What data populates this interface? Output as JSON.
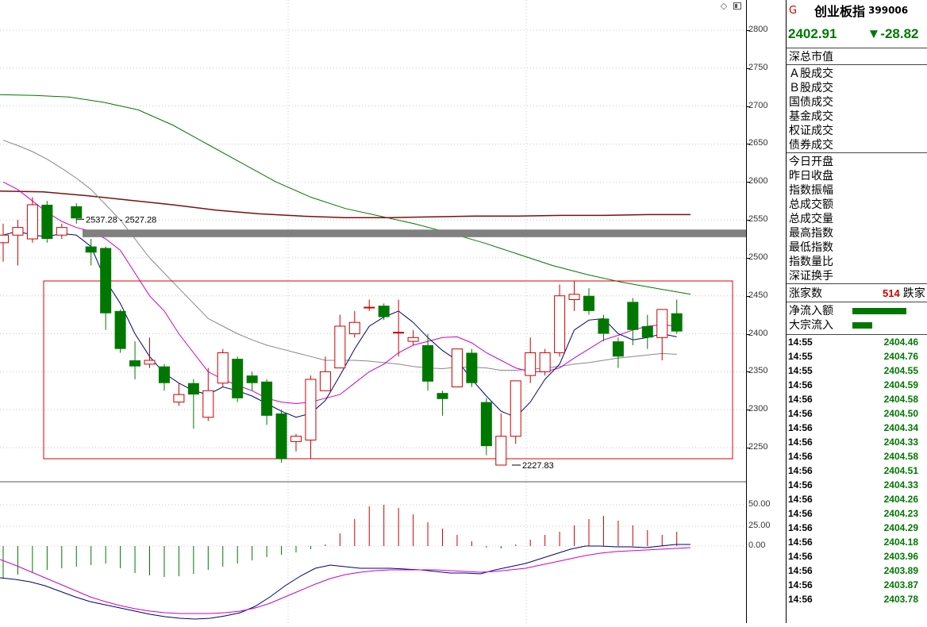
{
  "header": {
    "market_flag": "G",
    "index_name": "创业板指",
    "index_code": "399006",
    "last_price": "2402.91",
    "change": "▼-28.82"
  },
  "top_icons": [
    "diamond-icon",
    "window-toggle-icon"
  ],
  "axis": {
    "ticks": [
      "2800",
      "2750",
      "2700",
      "2650",
      "2600",
      "2550",
      "2500",
      "2450",
      "2400",
      "2350",
      "2300",
      "2250"
    ],
    "vol_ticks": [
      "50.00",
      "25.00",
      "0.00"
    ]
  },
  "annotations": {
    "range_label": "2537.28 - 2527.28",
    "low_label": "2227.83"
  },
  "panel": {
    "group1": [
      "深总市值"
    ],
    "group2": [
      "Ａ股成交",
      "Ｂ股成交",
      "国债成交",
      "基金成交",
      "权证成交",
      "债券成交"
    ],
    "group3": [
      "今日开盘",
      "昨日收盘",
      "指数振幅",
      "总成交额",
      "总成交量",
      "最高指数",
      "最低指数",
      "指数量比",
      "深证换手"
    ],
    "breadth_label": "涨家数",
    "breadth_value": "514",
    "breadth_label2": "跌家",
    "flow": [
      {
        "label": "净流入额",
        "bar": 0.95
      },
      {
        "label": "大宗流入",
        "bar": 0.35
      }
    ]
  },
  "ticks": [
    {
      "time": "14:55",
      "price": "2404.46"
    },
    {
      "time": "14:55",
      "price": "2404.76"
    },
    {
      "time": "14:55",
      "price": "2404.55"
    },
    {
      "time": "14:56",
      "price": "2404.59"
    },
    {
      "time": "14:56",
      "price": "2404.58"
    },
    {
      "time": "14:56",
      "price": "2404.50"
    },
    {
      "time": "14:56",
      "price": "2404.34"
    },
    {
      "time": "14:56",
      "price": "2404.33"
    },
    {
      "time": "14:56",
      "price": "2404.58"
    },
    {
      "time": "14:56",
      "price": "2404.51"
    },
    {
      "time": "14:56",
      "price": "2404.33"
    },
    {
      "time": "14:56",
      "price": "2404.26"
    },
    {
      "time": "14:56",
      "price": "2404.23"
    },
    {
      "time": "14:56",
      "price": "2404.29"
    },
    {
      "time": "14:56",
      "price": "2404.18"
    },
    {
      "time": "14:56",
      "price": "2403.96"
    },
    {
      "time": "14:56",
      "price": "2403.89"
    },
    {
      "time": "14:56",
      "price": "2403.87"
    },
    {
      "time": "14:56",
      "price": "2403.78"
    }
  ],
  "colors": {
    "up": "#d00000",
    "down": "#007800",
    "ma_short": "#000080",
    "ma_mid": "#cc00cc",
    "ma_long": "#888888",
    "ma_green": "#007800",
    "ma_maroon": "#7a1010",
    "band": "#808080"
  },
  "chart_data": {
    "type": "candlestick",
    "ylim": [
      2210,
      2810
    ],
    "candles": [
      {
        "o": 2520,
        "c": 2530,
        "h": 2545,
        "l": 2495
      },
      {
        "o": 2530,
        "c": 2540,
        "h": 2550,
        "l": 2490
      },
      {
        "o": 2525,
        "c": 2570,
        "h": 2580,
        "l": 2520
      },
      {
        "o": 2570,
        "c": 2525,
        "h": 2575,
        "l": 2520
      },
      {
        "o": 2530,
        "c": 2540,
        "h": 2545,
        "l": 2525
      },
      {
        "o": 2568,
        "c": 2552,
        "h": 2572,
        "l": 2545
      },
      {
        "o": 2515,
        "c": 2507,
        "h": 2525,
        "l": 2490
      },
      {
        "o": 2513,
        "c": 2427,
        "h": 2515,
        "l": 2405
      },
      {
        "o": 2430,
        "c": 2380,
        "h": 2432,
        "l": 2375
      },
      {
        "o": 2365,
        "c": 2357,
        "h": 2390,
        "l": 2340
      },
      {
        "o": 2360,
        "c": 2365,
        "h": 2395,
        "l": 2355
      },
      {
        "o": 2357,
        "c": 2335,
        "h": 2360,
        "l": 2325
      },
      {
        "o": 2310,
        "c": 2320,
        "h": 2335,
        "l": 2305
      },
      {
        "o": 2335,
        "c": 2320,
        "h": 2340,
        "l": 2275
      },
      {
        "o": 2290,
        "c": 2325,
        "h": 2355,
        "l": 2285
      },
      {
        "o": 2335,
        "c": 2375,
        "h": 2380,
        "l": 2330
      },
      {
        "o": 2367,
        "c": 2315,
        "h": 2370,
        "l": 2310
      },
      {
        "o": 2345,
        "c": 2335,
        "h": 2350,
        "l": 2325
      },
      {
        "o": 2337,
        "c": 2292,
        "h": 2340,
        "l": 2280
      },
      {
        "o": 2295,
        "c": 2235,
        "h": 2300,
        "l": 2230
      },
      {
        "o": 2258,
        "c": 2265,
        "h": 2268,
        "l": 2245
      },
      {
        "o": 2260,
        "c": 2340,
        "h": 2345,
        "l": 2235
      },
      {
        "o": 2325,
        "c": 2350,
        "h": 2370,
        "l": 2325
      },
      {
        "o": 2355,
        "c": 2410,
        "h": 2425,
        "l": 2355
      },
      {
        "o": 2400,
        "c": 2415,
        "h": 2430,
        "l": 2395
      },
      {
        "o": 2435,
        "c": 2435,
        "h": 2445,
        "l": 2430
      },
      {
        "o": 2437,
        "c": 2422,
        "h": 2440,
        "l": 2418
      },
      {
        "o": 2402,
        "c": 2402,
        "h": 2445,
        "l": 2370
      },
      {
        "o": 2390,
        "c": 2395,
        "h": 2405,
        "l": 2385
      },
      {
        "o": 2385,
        "c": 2337,
        "h": 2400,
        "l": 2325
      },
      {
        "o": 2322,
        "c": 2314,
        "h": 2325,
        "l": 2292
      },
      {
        "o": 2330,
        "c": 2380,
        "h": 2380,
        "l": 2330
      },
      {
        "o": 2375,
        "c": 2335,
        "h": 2380,
        "l": 2330
      },
      {
        "o": 2310,
        "c": 2252,
        "h": 2315,
        "l": 2240
      },
      {
        "o": 2227,
        "c": 2265,
        "h": 2295,
        "l": 2227
      },
      {
        "o": 2265,
        "c": 2338,
        "h": 2338,
        "l": 2255
      },
      {
        "o": 2345,
        "c": 2375,
        "h": 2395,
        "l": 2335
      },
      {
        "o": 2350,
        "c": 2375,
        "h": 2380,
        "l": 2345
      },
      {
        "o": 2375,
        "c": 2450,
        "h": 2465,
        "l": 2370
      },
      {
        "o": 2445,
        "c": 2452,
        "h": 2470,
        "l": 2430
      },
      {
        "o": 2450,
        "c": 2430,
        "h": 2460,
        "l": 2425
      },
      {
        "o": 2420,
        "c": 2400,
        "h": 2425,
        "l": 2390
      },
      {
        "o": 2390,
        "c": 2370,
        "h": 2395,
        "l": 2355
      },
      {
        "o": 2442,
        "c": 2405,
        "h": 2447,
        "l": 2385
      },
      {
        "o": 2410,
        "c": 2395,
        "h": 2425,
        "l": 2380
      },
      {
        "o": 2395,
        "c": 2432,
        "h": 2432,
        "l": 2365
      },
      {
        "o": 2427,
        "c": 2403,
        "h": 2445,
        "l": 2400
      }
    ],
    "ma5": [
      2530,
      2535,
      2530,
      2528,
      2532,
      2530,
      2515,
      2470,
      2440,
      2400,
      2370,
      2348,
      2335,
      2325,
      2320,
      2330,
      2325,
      2318,
      2308,
      2298,
      2290,
      2295,
      2312,
      2345,
      2380,
      2410,
      2422,
      2430,
      2415,
      2395,
      2378,
      2365,
      2340,
      2318,
      2298,
      2290,
      2310,
      2340,
      2360,
      2405,
      2418,
      2420,
      2400,
      2392,
      2395,
      2400,
      2396
    ],
    "ma10": [
      2600,
      2590,
      2575,
      2560,
      2548,
      2540,
      2535,
      2525,
      2510,
      2480,
      2450,
      2430,
      2400,
      2375,
      2350,
      2340,
      2332,
      2325,
      2315,
      2310,
      2308,
      2310,
      2315,
      2320,
      2335,
      2350,
      2360,
      2375,
      2385,
      2390,
      2395,
      2396,
      2388,
      2375,
      2365,
      2355,
      2350,
      2350,
      2355,
      2368,
      2380,
      2392,
      2398,
      2405,
      2410,
      2412,
      2410
    ],
    "ma_long": [
      2655,
      2648,
      2640,
      2630,
      2618,
      2605,
      2590,
      2570,
      2550,
      2525,
      2500,
      2480,
      2460,
      2440,
      2420,
      2410,
      2400,
      2392,
      2385,
      2380,
      2375,
      2370,
      2365,
      2365,
      2365,
      2364,
      2362,
      2360,
      2357,
      2355,
      2354,
      2356,
      2356,
      2355,
      2352,
      2352,
      2353,
      2355,
      2357,
      2360,
      2362,
      2365,
      2368,
      2370,
      2372,
      2374,
      2373
    ]
  }
}
